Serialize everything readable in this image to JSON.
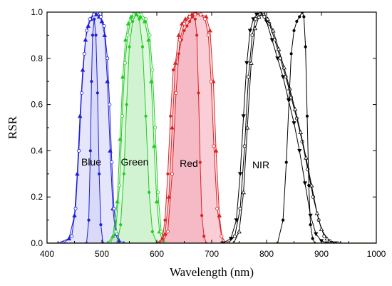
{
  "chart_data": {
    "type": "line",
    "xlabel": "Wavelength (nm)",
    "ylabel": "RSR",
    "xlim": [
      400,
      1000
    ],
    "ylim": [
      0.0,
      1.0
    ],
    "xticks": [
      "400",
      "500",
      "600",
      "700",
      "800",
      "900",
      "1000"
    ],
    "yticks": [
      "0.0",
      "0.2",
      "0.4",
      "0.6",
      "0.8",
      "1.0"
    ],
    "grid": false,
    "annotations": [
      {
        "text": "Blue",
        "x": 480,
        "y": 0.36
      },
      {
        "text": "Green",
        "x": 555,
        "y": 0.36
      },
      {
        "text": "Red",
        "x": 657,
        "y": 0.35
      },
      {
        "text": "NIR",
        "x": 795,
        "y": 0.34
      }
    ],
    "series": [
      {
        "group": "Blue",
        "color": "#1f1fd8",
        "marker": "triangle",
        "x": [
          420,
          440,
          450,
          455,
          460,
          465,
          470,
          475,
          480,
          485,
          490,
          495,
          500,
          505,
          510,
          515,
          520,
          525,
          530,
          540
        ],
        "y": [
          0.0,
          0.02,
          0.12,
          0.3,
          0.55,
          0.75,
          0.88,
          0.94,
          0.97,
          0.99,
          0.99,
          0.98,
          0.96,
          0.9,
          0.7,
          0.4,
          0.15,
          0.04,
          0.01,
          0.0
        ]
      },
      {
        "group": "Blue",
        "color": "#1f1fd8",
        "marker": "circle-open",
        "x": [
          430,
          445,
          452,
          458,
          463,
          468,
          472,
          478,
          485,
          492,
          498,
          504,
          510,
          514,
          518,
          522,
          527,
          535
        ],
        "y": [
          0.0,
          0.03,
          0.15,
          0.4,
          0.65,
          0.82,
          0.92,
          0.97,
          0.99,
          1.0,
          0.98,
          0.94,
          0.8,
          0.6,
          0.35,
          0.15,
          0.04,
          0.0
        ]
      },
      {
        "group": "Blue",
        "color": "#1f1fd8",
        "marker": "circle",
        "x": [
          472,
          476,
          479,
          481,
          483,
          486,
          489,
          492,
          495,
          498,
          502
        ],
        "y": [
          0.0,
          0.1,
          0.4,
          0.7,
          0.9,
          0.97,
          0.9,
          0.65,
          0.3,
          0.08,
          0.0
        ]
      },
      {
        "group": "Green",
        "color": "#22cc22",
        "marker": "triangle",
        "x": [
          510,
          520,
          528,
          533,
          538,
          543,
          548,
          553,
          558,
          563,
          570,
          578,
          585,
          590,
          595,
          600,
          605,
          612
        ],
        "y": [
          0.0,
          0.03,
          0.18,
          0.45,
          0.72,
          0.88,
          0.95,
          0.98,
          0.99,
          0.99,
          0.98,
          0.96,
          0.88,
          0.7,
          0.42,
          0.18,
          0.05,
          0.0
        ]
      },
      {
        "group": "Green",
        "color": "#22cc22",
        "marker": "circle-open",
        "x": [
          515,
          525,
          532,
          537,
          542,
          547,
          552,
          558,
          565,
          572,
          580,
          587,
          592,
          597,
          602,
          608,
          615
        ],
        "y": [
          0.0,
          0.05,
          0.25,
          0.55,
          0.78,
          0.9,
          0.96,
          0.99,
          1.0,
          0.99,
          0.97,
          0.9,
          0.75,
          0.5,
          0.22,
          0.05,
          0.0
        ]
      },
      {
        "group": "Green",
        "color": "#22cc22",
        "marker": "circle",
        "x": [
          528,
          534,
          540,
          545,
          550,
          556,
          562,
          568,
          574,
          580,
          586,
          592,
          600
        ],
        "y": [
          0.0,
          0.08,
          0.3,
          0.6,
          0.85,
          0.96,
          0.99,
          0.97,
          0.85,
          0.55,
          0.22,
          0.05,
          0.0
        ]
      },
      {
        "group": "Red",
        "color": "#dd2222",
        "marker": "circle",
        "x": [
          600,
          610,
          615,
          620,
          625,
          630,
          640,
          645,
          650,
          655,
          660,
          665,
          670,
          673,
          676,
          679,
          682,
          686,
          690
        ],
        "y": [
          0.0,
          0.02,
          0.1,
          0.3,
          0.55,
          0.75,
          0.82,
          0.88,
          0.92,
          0.94,
          0.96,
          0.98,
          0.97,
          0.9,
          0.65,
          0.35,
          0.12,
          0.03,
          0.0
        ]
      },
      {
        "group": "Red",
        "color": "#dd2222",
        "marker": "triangle",
        "x": [
          605,
          615,
          622,
          628,
          634,
          640,
          646,
          652,
          658,
          664,
          670,
          680,
          690,
          697,
          703,
          708,
          714,
          720
        ],
        "y": [
          0.0,
          0.04,
          0.2,
          0.5,
          0.78,
          0.9,
          0.95,
          0.97,
          0.98,
          0.99,
          1.0,
          0.99,
          0.98,
          0.92,
          0.7,
          0.4,
          0.12,
          0.0
        ]
      },
      {
        "group": "Red",
        "color": "#dd2222",
        "marker": "circle-open",
        "x": [
          610,
          620,
          628,
          635,
          642,
          650,
          660,
          670,
          680,
          688,
          694,
          699,
          704,
          710,
          718,
          726
        ],
        "y": [
          0.0,
          0.05,
          0.3,
          0.65,
          0.88,
          0.95,
          0.98,
          0.99,
          0.99,
          0.97,
          0.9,
          0.7,
          0.42,
          0.15,
          0.03,
          0.0
        ]
      },
      {
        "group": "NIR",
        "color": "#000000",
        "marker": "triangle-down",
        "x": [
          720,
          735,
          745,
          752,
          758,
          764,
          770,
          776,
          782,
          790,
          800,
          810,
          820,
          830,
          840,
          850,
          860,
          870,
          880,
          890,
          900,
          910,
          925
        ],
        "y": [
          0.0,
          0.02,
          0.1,
          0.3,
          0.55,
          0.78,
          0.92,
          0.97,
          0.99,
          1.0,
          0.96,
          0.88,
          0.8,
          0.72,
          0.62,
          0.52,
          0.4,
          0.26,
          0.12,
          0.04,
          0.01,
          0.0,
          0.0
        ]
      },
      {
        "group": "NIR",
        "color": "#000000",
        "marker": "circle-open",
        "x": [
          730,
          742,
          752,
          760,
          767,
          774,
          780,
          788,
          796,
          805,
          815,
          825,
          835,
          845,
          855,
          865,
          875,
          885,
          895,
          905,
          915,
          930
        ],
        "y": [
          0.0,
          0.03,
          0.15,
          0.42,
          0.72,
          0.9,
          0.97,
          0.99,
          0.98,
          0.95,
          0.88,
          0.8,
          0.72,
          0.63,
          0.54,
          0.44,
          0.32,
          0.2,
          0.1,
          0.03,
          0.01,
          0.0
        ]
      },
      {
        "group": "NIR",
        "color": "#000000",
        "marker": "triangle-open",
        "x": [
          740,
          750,
          758,
          765,
          772,
          779,
          786,
          794,
          802,
          812,
          822,
          832,
          842,
          852,
          862,
          872,
          882,
          892,
          900,
          910,
          920,
          935
        ],
        "y": [
          0.0,
          0.05,
          0.22,
          0.5,
          0.78,
          0.93,
          0.98,
          1.0,
          0.97,
          0.92,
          0.84,
          0.76,
          0.67,
          0.58,
          0.48,
          0.37,
          0.25,
          0.13,
          0.06,
          0.02,
          0.0,
          0.0
        ]
      },
      {
        "group": "NIR",
        "color": "#000000",
        "marker": "circle",
        "x": [
          820,
          830,
          836,
          841,
          845,
          850,
          855,
          860,
          865,
          868,
          871,
          874,
          877,
          880,
          884,
          888
        ],
        "y": [
          0.0,
          0.1,
          0.35,
          0.62,
          0.82,
          0.92,
          0.96,
          0.98,
          1.0,
          0.98,
          0.85,
          0.55,
          0.25,
          0.08,
          0.02,
          0.0
        ]
      }
    ]
  }
}
